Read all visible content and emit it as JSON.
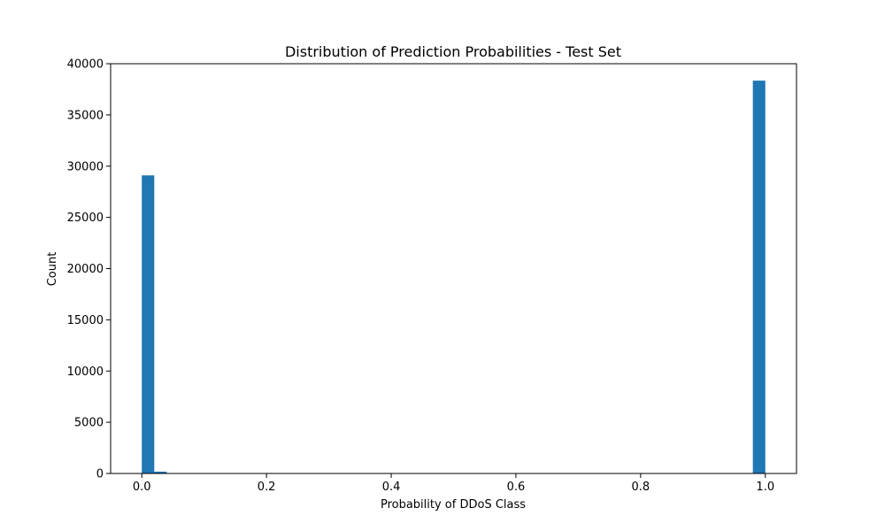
{
  "chart_data": {
    "type": "bar",
    "title": "Distribution of Prediction Probabilities - Test Set",
    "xlabel": "Probability of DDoS Class",
    "ylabel": "Count",
    "xlim": [
      -0.05,
      1.05
    ],
    "ylim": [
      0,
      40000
    ],
    "xticks": [
      0.0,
      0.2,
      0.4,
      0.6,
      0.8,
      1.0
    ],
    "xtick_labels": [
      "0.0",
      "0.2",
      "0.4",
      "0.6",
      "0.8",
      "1.0"
    ],
    "yticks": [
      0,
      5000,
      10000,
      15000,
      20000,
      25000,
      30000,
      35000,
      40000
    ],
    "ytick_labels": [
      "0",
      "5000",
      "10000",
      "15000",
      "20000",
      "25000",
      "30000",
      "35000",
      "40000"
    ],
    "bin_width": 0.02,
    "bins": [
      {
        "x0": 0.0,
        "x1": 0.02,
        "count": 29100
      },
      {
        "x0": 0.02,
        "x1": 0.04,
        "count": 180
      },
      {
        "x0": 0.98,
        "x1": 1.0,
        "count": 38350
      }
    ],
    "bar_color": "#1f77b4",
    "grid": false
  }
}
